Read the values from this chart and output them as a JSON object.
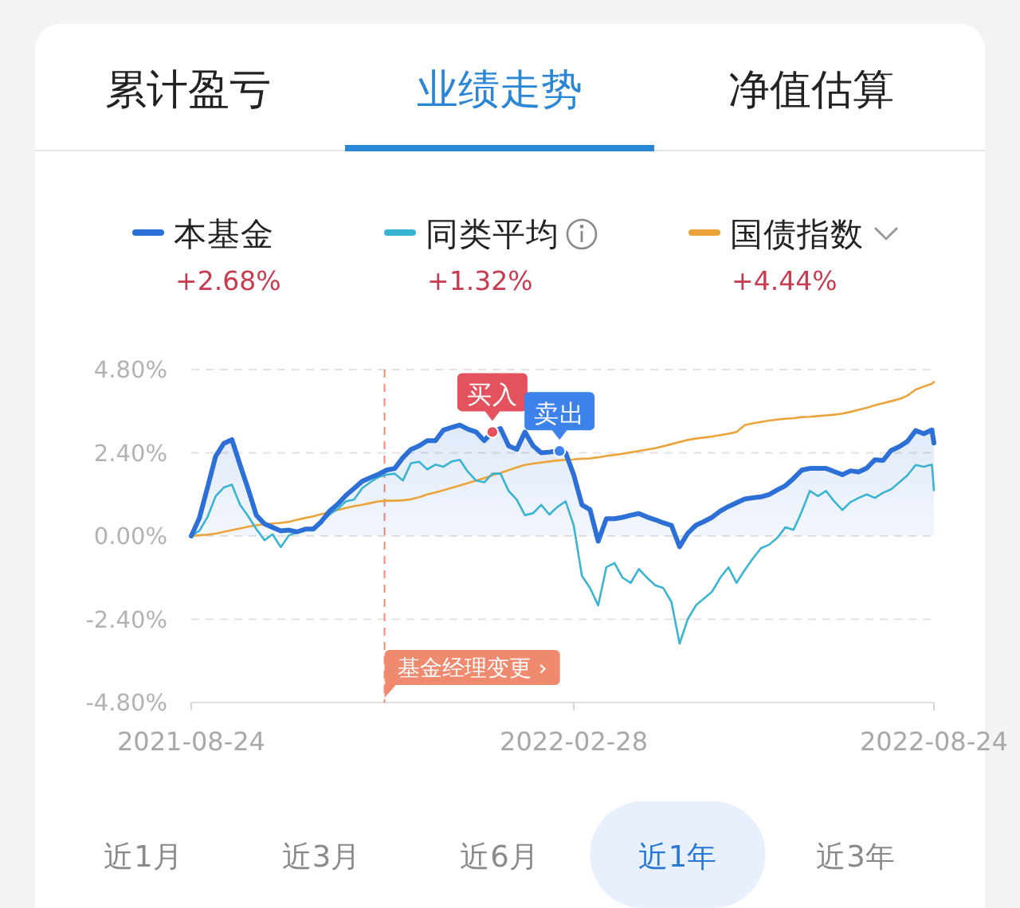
{
  "chart_data": {
    "type": "line",
    "x": [
      "2021-08-24",
      "2021-08-28",
      "2021-09-01",
      "2021-09-05",
      "2021-09-09",
      "2021-09-13",
      "2021-09-17",
      "2021-09-21",
      "2021-09-25",
      "2021-09-29",
      "2021-10-03",
      "2021-10-07",
      "2021-10-11",
      "2021-10-15",
      "2021-10-19",
      "2021-10-23",
      "2021-10-27",
      "2021-10-31",
      "2021-11-04",
      "2021-11-08",
      "2021-11-12",
      "2021-11-16",
      "2021-11-20",
      "2021-11-24",
      "2021-11-28",
      "2021-12-02",
      "2021-12-06",
      "2021-12-10",
      "2021-12-14",
      "2021-12-18",
      "2021-12-22",
      "2021-12-26",
      "2021-12-30",
      "2022-01-03",
      "2022-01-07",
      "2022-01-11",
      "2022-01-15",
      "2022-01-19",
      "2022-01-23",
      "2022-01-27",
      "2022-01-31",
      "2022-02-04",
      "2022-02-08",
      "2022-02-12",
      "2022-02-16",
      "2022-02-20",
      "2022-02-24",
      "2022-02-28",
      "2022-03-04",
      "2022-03-08",
      "2022-03-12",
      "2022-03-16",
      "2022-03-20",
      "2022-03-24",
      "2022-03-28",
      "2022-04-01",
      "2022-04-05",
      "2022-04-09",
      "2022-04-13",
      "2022-04-17",
      "2022-04-21",
      "2022-04-25",
      "2022-04-29",
      "2022-05-03",
      "2022-05-07",
      "2022-05-11",
      "2022-05-15",
      "2022-05-19",
      "2022-05-23",
      "2022-05-27",
      "2022-05-31",
      "2022-06-04",
      "2022-06-08",
      "2022-06-12",
      "2022-06-16",
      "2022-06-20",
      "2022-06-24",
      "2022-06-28",
      "2022-07-02",
      "2022-07-06",
      "2022-07-10",
      "2022-07-14",
      "2022-07-18",
      "2022-07-22",
      "2022-07-26",
      "2022-07-30",
      "2022-08-03",
      "2022-08-07",
      "2022-08-11",
      "2022-08-15",
      "2022-08-19",
      "2022-08-23",
      "2022-08-24"
    ],
    "series": [
      {
        "name": "本基金",
        "type": "area",
        "color": "#2c6fd6",
        "values": [
          0.0,
          0.52,
          1.4,
          2.3,
          2.67,
          2.78,
          2.05,
          1.35,
          0.6,
          0.35,
          0.25,
          0.15,
          0.17,
          0.12,
          0.2,
          0.2,
          0.42,
          0.72,
          0.92,
          1.17,
          1.37,
          1.58,
          1.68,
          1.78,
          1.9,
          1.95,
          2.26,
          2.5,
          2.6,
          2.75,
          2.75,
          3.06,
          3.13,
          3.2,
          3.08,
          3.0,
          2.75,
          3.0,
          3.1,
          2.6,
          2.5,
          3.0,
          2.6,
          2.4,
          2.42,
          2.45,
          2.4,
          1.76,
          0.9,
          0.76,
          -0.15,
          0.5,
          0.5,
          0.54,
          0.6,
          0.65,
          0.55,
          0.47,
          0.38,
          0.31,
          -0.31,
          0.08,
          0.31,
          0.42,
          0.54,
          0.72,
          0.85,
          0.96,
          1.07,
          1.1,
          1.13,
          1.2,
          1.33,
          1.45,
          1.66,
          1.9,
          1.95,
          1.95,
          1.95,
          1.86,
          1.77,
          1.88,
          1.85,
          1.96,
          2.2,
          2.18,
          2.47,
          2.58,
          2.73,
          3.04,
          2.95,
          3.06,
          2.68
        ]
      },
      {
        "name": "同类平均",
        "color": "#3ab4d2",
        "values": [
          0.0,
          0.15,
          0.55,
          1.15,
          1.4,
          1.48,
          0.9,
          0.57,
          0.2,
          -0.12,
          0.05,
          -0.32,
          0.02,
          0.1,
          0.17,
          0.25,
          0.4,
          0.62,
          0.78,
          1.0,
          1.05,
          1.38,
          1.55,
          1.7,
          1.77,
          1.8,
          1.6,
          2.1,
          2.14,
          1.92,
          2.06,
          2.0,
          2.15,
          2.2,
          1.85,
          1.6,
          1.55,
          1.8,
          1.8,
          1.3,
          1.05,
          0.6,
          0.66,
          0.9,
          0.62,
          0.84,
          1.0,
          0.3,
          -1.15,
          -1.5,
          -2.0,
          -0.9,
          -0.78,
          -1.2,
          -1.35,
          -0.95,
          -1.2,
          -1.42,
          -1.5,
          -1.9,
          -3.1,
          -2.4,
          -2.0,
          -1.8,
          -1.6,
          -1.2,
          -0.9,
          -1.35,
          -0.98,
          -0.65,
          -0.35,
          -0.25,
          -0.05,
          0.25,
          0.18,
          0.7,
          1.3,
          1.15,
          1.3,
          1.0,
          0.75,
          0.98,
          1.1,
          1.2,
          1.1,
          1.25,
          1.35,
          1.55,
          1.75,
          2.05,
          2.0,
          2.06,
          1.32
        ]
      },
      {
        "name": "国债指数",
        "color": "#eba43a",
        "values": [
          0.0,
          0.02,
          0.04,
          0.07,
          0.12,
          0.17,
          0.22,
          0.27,
          0.31,
          0.34,
          0.36,
          0.38,
          0.41,
          0.47,
          0.52,
          0.57,
          0.63,
          0.69,
          0.75,
          0.81,
          0.86,
          0.9,
          0.95,
          1.0,
          1.02,
          1.02,
          1.03,
          1.06,
          1.12,
          1.2,
          1.26,
          1.32,
          1.39,
          1.46,
          1.53,
          1.6,
          1.67,
          1.75,
          1.82,
          1.9,
          1.98,
          2.05,
          2.09,
          2.12,
          2.15,
          2.18,
          2.2,
          2.21,
          2.23,
          2.24,
          2.27,
          2.31,
          2.34,
          2.37,
          2.41,
          2.45,
          2.49,
          2.53,
          2.59,
          2.65,
          2.71,
          2.77,
          2.81,
          2.84,
          2.87,
          2.91,
          2.95,
          3.0,
          3.2,
          3.25,
          3.29,
          3.33,
          3.36,
          3.38,
          3.4,
          3.43,
          3.44,
          3.46,
          3.48,
          3.5,
          3.53,
          3.58,
          3.64,
          3.7,
          3.77,
          3.83,
          3.89,
          3.95,
          4.05,
          4.22,
          4.31,
          4.39,
          4.44
        ]
      }
    ],
    "xlim": [
      "2021-08-24",
      "2022-08-24"
    ],
    "xticks": [
      "2021-08-24",
      "2022-02-28",
      "2022-08-24"
    ],
    "ylim": [
      -4.8,
      4.8
    ],
    "yticks": [
      {
        "value": -4.8,
        "label": "-4.80%"
      },
      {
        "value": -2.4,
        "label": "-2.40%"
      },
      {
        "value": 0,
        "label": "0.00%"
      },
      {
        "value": 2.4,
        "label": "2.40%"
      },
      {
        "value": 4.8,
        "label": "4.80%"
      }
    ],
    "grid": "y",
    "legend": "top",
    "ref_lines": [
      {
        "axis": "x",
        "value": "2021-11-27",
        "label": "基金经理变更 ›",
        "color": "#f08a6e",
        "line_style": "dashed"
      }
    ],
    "annotations": [
      "累计盈亏",
      "业绩走势",
      "净值估算",
      "+2.68%",
      "+1.32%",
      "+4.44%",
      {
        "text": "买入",
        "x": "2022-01-19",
        "y": 3.0
      },
      {
        "text": "卖出",
        "x": "2022-02-21",
        "y": 2.45
      },
      "近1月",
      "近3月",
      "近6月",
      "近1年",
      "近3年"
    ]
  }
}
